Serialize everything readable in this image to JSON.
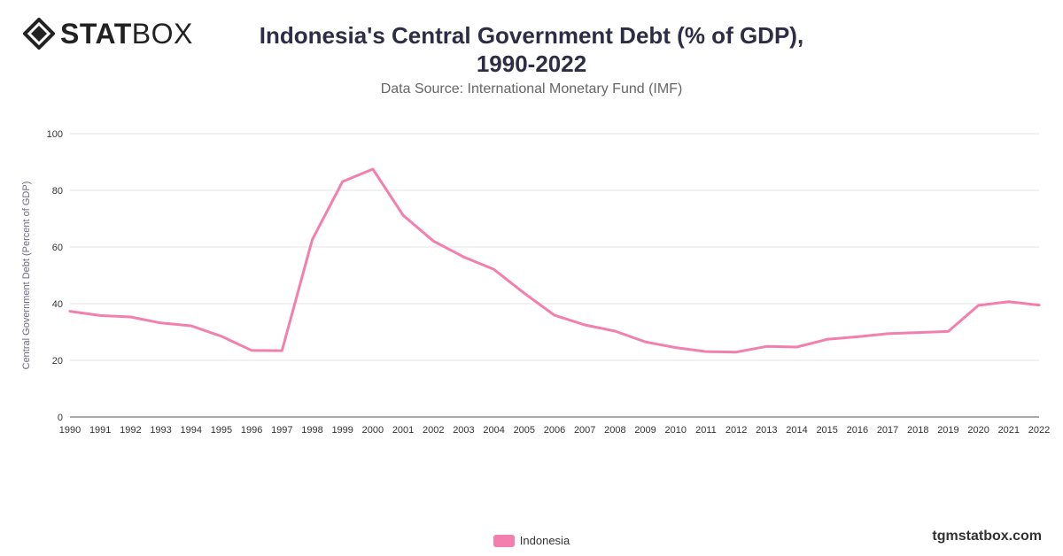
{
  "brand": {
    "name_bold": "STAT",
    "name_light": "BOX",
    "icon": "statbox-diamond-icon"
  },
  "header": {
    "title_line1": "Indonesia's Central Government Debt (% of GDP),",
    "title_line2": "1990-2022",
    "subtitle": "Data Source: International Monetary Fund (IMF)"
  },
  "footer": {
    "site": "tgmstatbox.com"
  },
  "colors": {
    "series": "#f27fae",
    "grid": "#e3e3e3",
    "axis": "#555555"
  },
  "chart_data": {
    "type": "line",
    "title": "Indonesia's Central Government Debt (% of GDP), 1990-2022",
    "subtitle": "Data Source: International Monetary Fund (IMF)",
    "xlabel": "",
    "ylabel": "Central Government Debt (Percent of GDP)",
    "ylim": [
      0,
      100
    ],
    "yticks": [
      0,
      20,
      40,
      60,
      80,
      100
    ],
    "grid": true,
    "legend": "bottom-center",
    "x": [
      "1990",
      "1991",
      "1992",
      "1993",
      "1994",
      "1995",
      "1996",
      "1997",
      "1998",
      "1999",
      "2000",
      "2001",
      "2002",
      "2003",
      "2004",
      "2005",
      "2006",
      "2007",
      "2008",
      "2009",
      "2010",
      "2011",
      "2012",
      "2013",
      "2014",
      "2015",
      "2016",
      "2017",
      "2018",
      "2019",
      "2020",
      "2021",
      "2022"
    ],
    "series": [
      {
        "name": "Indonesia",
        "color": "#f27fae",
        "values": [
          37.3,
          35.8,
          35.3,
          33.2,
          32.2,
          28.5,
          23.5,
          23.4,
          62.6,
          83.1,
          87.5,
          71.2,
          62.1,
          56.5,
          52.1,
          43.7,
          35.9,
          32.5,
          30.3,
          26.5,
          24.5,
          23.1,
          22.9,
          24.9,
          24.7,
          27.4,
          28.3,
          29.4,
          29.8,
          30.2,
          39.4,
          40.7,
          39.5
        ]
      }
    ]
  }
}
